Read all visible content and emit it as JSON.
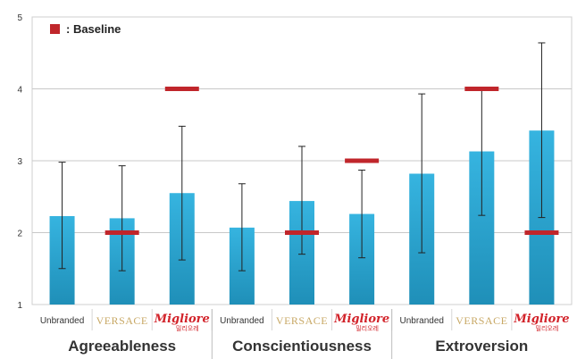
{
  "chart_data": {
    "type": "bar",
    "title": "",
    "xlabel": "",
    "ylabel": "",
    "ylim": [
      1,
      5
    ],
    "yticks": [
      1,
      2,
      3,
      4,
      5
    ],
    "grid": true,
    "legend": {
      "position": "top-left",
      "label": ": Baseline",
      "marker_color": "#c0262b"
    },
    "bar_color": "#2aa9d6",
    "baseline_color": "#c0262b",
    "categories": [
      {
        "group": "Agreeableness",
        "label": "Unbranded",
        "style": "unbranded",
        "value": 2.23,
        "err_low": 1.5,
        "err_high": 2.98,
        "baseline": null
      },
      {
        "group": "Agreeableness",
        "label": "VERSACE",
        "style": "versace",
        "value": 2.2,
        "err_low": 1.47,
        "err_high": 2.93,
        "baseline": 2.0
      },
      {
        "group": "Agreeableness",
        "label": "Migliore",
        "sublabel": "밀리오레",
        "style": "migliore",
        "value": 2.55,
        "err_low": 1.62,
        "err_high": 3.48,
        "baseline": 4.0
      },
      {
        "group": "Conscientiousness",
        "label": "Unbranded",
        "style": "unbranded",
        "value": 2.07,
        "err_low": 1.47,
        "err_high": 2.68,
        "baseline": null
      },
      {
        "group": "Conscientiousness",
        "label": "VERSACE",
        "style": "versace",
        "value": 2.44,
        "err_low": 1.7,
        "err_high": 3.2,
        "baseline": 2.0
      },
      {
        "group": "Conscientiousness",
        "label": "Migliore",
        "sublabel": "밀리오레",
        "style": "migliore",
        "value": 2.26,
        "err_low": 1.65,
        "err_high": 2.87,
        "baseline": 3.0
      },
      {
        "group": "Extroversion",
        "label": "Unbranded",
        "style": "unbranded",
        "value": 2.82,
        "err_low": 1.72,
        "err_high": 3.93,
        "baseline": null
      },
      {
        "group": "Extroversion",
        "label": "VERSACE",
        "style": "versace",
        "value": 3.13,
        "err_low": 2.24,
        "err_high": 4.02,
        "baseline": 4.0
      },
      {
        "group": "Extroversion",
        "label": "Migliore",
        "sublabel": "밀리오레",
        "style": "migliore",
        "value": 3.42,
        "err_low": 2.21,
        "err_high": 4.64,
        "baseline": 2.0
      }
    ],
    "groups": [
      "Agreeableness",
      "Conscientiousness",
      "Extroversion"
    ]
  }
}
